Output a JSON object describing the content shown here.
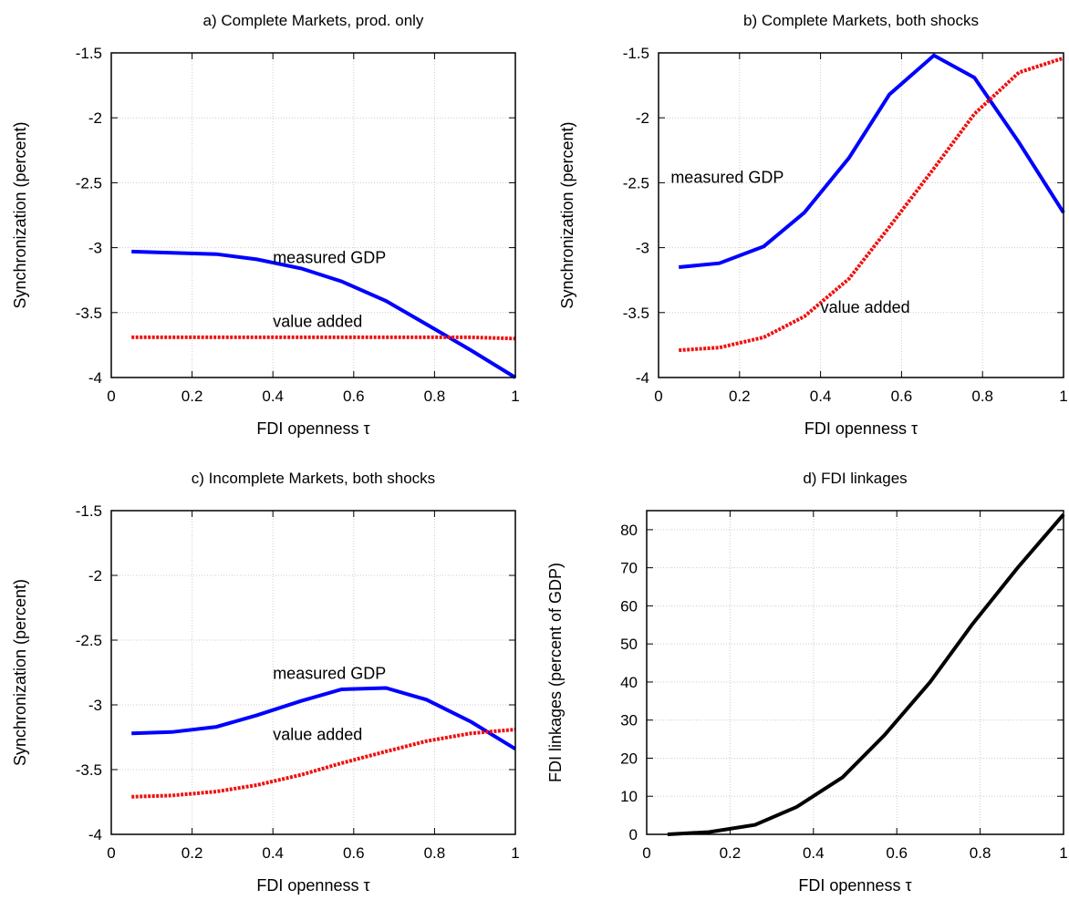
{
  "chart_data": [
    {
      "type": "line",
      "title": "a) Complete Markets, prod. only",
      "xlabel": "FDI openness τ",
      "ylabel": "Synchronization (percent)",
      "xlim": [
        0,
        1
      ],
      "ylim": [
        -4,
        -1.5
      ],
      "xticks": [
        "0",
        "0.2",
        "0.4",
        "0.6",
        "0.8",
        "1"
      ],
      "yticks": [
        "-1.5",
        "-2",
        "-2.5",
        "-3",
        "-3.5",
        "-4"
      ],
      "grid": true,
      "series": [
        {
          "name": "measured GDP",
          "color": "#0000ff",
          "style": "solid",
          "x": [
            0.05,
            0.15,
            0.26,
            0.36,
            0.47,
            0.57,
            0.68,
            0.78,
            0.89,
            1.0
          ],
          "y": [
            -3.03,
            -3.04,
            -3.05,
            -3.09,
            -3.16,
            -3.26,
            -3.41,
            -3.59,
            -3.79,
            -4.0
          ]
        },
        {
          "name": "value added",
          "color": "#ee1111",
          "style": "dotted",
          "x": [
            0.05,
            0.15,
            0.26,
            0.36,
            0.47,
            0.57,
            0.68,
            0.78,
            0.89,
            1.0
          ],
          "y": [
            -3.69,
            -3.69,
            -3.69,
            -3.69,
            -3.69,
            -3.69,
            -3.69,
            -3.69,
            -3.69,
            -3.7
          ]
        }
      ],
      "annotations": [
        {
          "text": "measured GDP",
          "x": 0.4,
          "y": -3.12
        },
        {
          "text": "value added",
          "x": 0.4,
          "y": -3.61
        }
      ]
    },
    {
      "type": "line",
      "title": "b) Complete Markets, both shocks",
      "xlabel": "FDI openness τ",
      "ylabel": "Synchronization (percent)",
      "xlim": [
        0,
        1
      ],
      "ylim": [
        -4,
        -1.5
      ],
      "xticks": [
        "0",
        "0.2",
        "0.4",
        "0.6",
        "0.8",
        "1"
      ],
      "yticks": [
        "-1.5",
        "-2",
        "-2.5",
        "-3",
        "-3.5",
        "-4"
      ],
      "grid": true,
      "series": [
        {
          "name": "measured GDP",
          "color": "#0000ff",
          "style": "solid",
          "x": [
            0.05,
            0.15,
            0.26,
            0.36,
            0.47,
            0.57,
            0.68,
            0.78,
            0.89,
            1.0
          ],
          "y": [
            -3.15,
            -3.12,
            -2.99,
            -2.73,
            -2.31,
            -1.82,
            -1.52,
            -1.69,
            -2.19,
            -2.73
          ]
        },
        {
          "name": "value added",
          "color": "#ee1111",
          "style": "dotted",
          "x": [
            0.05,
            0.15,
            0.26,
            0.36,
            0.47,
            0.57,
            0.68,
            0.78,
            0.89,
            1.0
          ],
          "y": [
            -3.79,
            -3.77,
            -3.69,
            -3.53,
            -3.24,
            -2.84,
            -2.39,
            -1.97,
            -1.65,
            -1.54
          ]
        }
      ],
      "annotations": [
        {
          "text": "measured GDP",
          "x": 0.03,
          "y": -2.5
        },
        {
          "text": "value added",
          "x": 0.4,
          "y": -3.5
        }
      ]
    },
    {
      "type": "line",
      "title": "c) Incomplete Markets, both shocks",
      "xlabel": "FDI openness τ",
      "ylabel": "Synchronization (percent)",
      "xlim": [
        0,
        1
      ],
      "ylim": [
        -4,
        -1.5
      ],
      "xticks": [
        "0",
        "0.2",
        "0.4",
        "0.6",
        "0.8",
        "1"
      ],
      "yticks": [
        "-1.5",
        "-2",
        "-2.5",
        "-3",
        "-3.5",
        "-4"
      ],
      "grid": true,
      "series": [
        {
          "name": "measured GDP",
          "color": "#0000ff",
          "style": "solid",
          "x": [
            0.05,
            0.15,
            0.26,
            0.36,
            0.47,
            0.57,
            0.68,
            0.78,
            0.89,
            1.0
          ],
          "y": [
            -3.22,
            -3.21,
            -3.17,
            -3.08,
            -2.97,
            -2.88,
            -2.87,
            -2.96,
            -3.13,
            -3.34
          ]
        },
        {
          "name": "value added",
          "color": "#ee1111",
          "style": "dotted",
          "x": [
            0.05,
            0.15,
            0.26,
            0.36,
            0.47,
            0.57,
            0.68,
            0.78,
            0.89,
            1.0
          ],
          "y": [
            -3.71,
            -3.7,
            -3.67,
            -3.62,
            -3.54,
            -3.45,
            -3.36,
            -3.28,
            -3.22,
            -3.19
          ]
        }
      ],
      "annotations": [
        {
          "text": "measured GDP",
          "x": 0.4,
          "y": -2.8
        },
        {
          "text": "value added",
          "x": 0.4,
          "y": -3.27
        }
      ]
    },
    {
      "type": "line",
      "title": "d) FDI linkages",
      "xlabel": "FDI openness τ",
      "ylabel": "FDI linkages (percent of GDP)",
      "xlim": [
        0,
        1
      ],
      "ylim": [
        0,
        85
      ],
      "xticks": [
        "0",
        "0.2",
        "0.4",
        "0.6",
        "0.8",
        "1"
      ],
      "yticks": [
        "0",
        "10",
        "20",
        "30",
        "40",
        "50",
        "60",
        "70",
        "80"
      ],
      "grid": true,
      "series": [
        {
          "name": "",
          "color": "#000000",
          "style": "solid",
          "x": [
            0.05,
            0.15,
            0.26,
            0.36,
            0.47,
            0.57,
            0.68,
            0.78,
            0.89,
            1.0
          ],
          "y": [
            0.0,
            0.6,
            2.5,
            7.2,
            15.0,
            26.0,
            40.0,
            55.0,
            70.0,
            84.0
          ]
        }
      ],
      "annotations": []
    }
  ]
}
